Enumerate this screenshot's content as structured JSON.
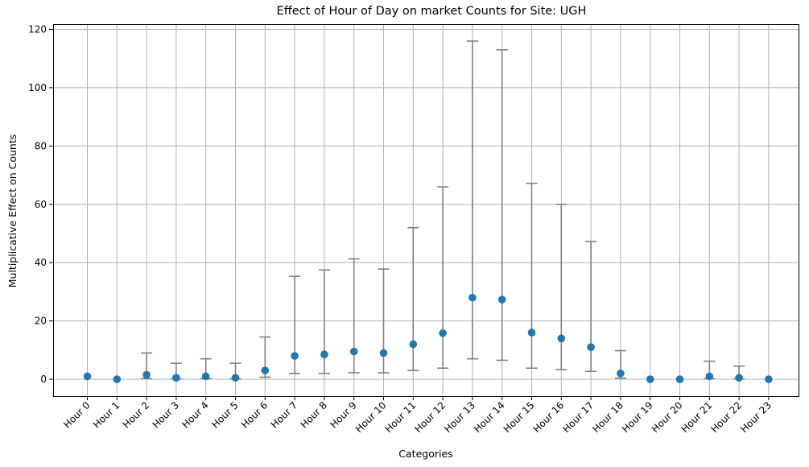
{
  "chart_data": {
    "type": "scatter",
    "title": "Effect of Hour of Day on market Counts for Site: UGH",
    "xlabel": "Categories",
    "ylabel": "Multiplicative Effect on Counts",
    "categories": [
      "Hour 0",
      "Hour 1",
      "Hour 2",
      "Hour 3",
      "Hour 4",
      "Hour 5",
      "Hour 6",
      "Hour 7",
      "Hour 8",
      "Hour 9",
      "Hour 10",
      "Hour 11",
      "Hour 12",
      "Hour 13",
      "Hour 14",
      "Hour 15",
      "Hour 16",
      "Hour 17",
      "Hour 18",
      "Hour 19",
      "Hour 20",
      "Hour 21",
      "Hour 22",
      "Hour 23"
    ],
    "values": [
      1.0,
      0.0,
      1.5,
      0.5,
      1.0,
      0.5,
      3.0,
      8.0,
      8.5,
      9.5,
      9.0,
      12.0,
      15.8,
      28.0,
      27.3,
      16.0,
      14.0,
      11.0,
      2.0,
      0.0,
      0.0,
      1.0,
      0.5,
      0.0
    ],
    "lower": [
      1.0,
      0.0,
      0.2,
      0.1,
      0.2,
      0.1,
      0.7,
      2.0,
      2.0,
      2.2,
      2.2,
      3.0,
      3.8,
      7.0,
      6.5,
      3.8,
      3.3,
      2.7,
      0.4,
      0.0,
      0.0,
      0.2,
      0.1,
      0.0
    ],
    "upper": [
      1.0,
      0.0,
      9.0,
      5.5,
      7.0,
      5.5,
      14.5,
      35.3,
      37.5,
      41.3,
      37.8,
      52.0,
      66.0,
      116.0,
      113.0,
      67.2,
      60.0,
      47.3,
      9.8,
      0.0,
      0.0,
      6.2,
      4.5,
      0.0
    ],
    "yticks": [
      0,
      20,
      40,
      60,
      80,
      100,
      120
    ],
    "ylim": [
      -5.8,
      121.8
    ],
    "grid": true,
    "colors": {
      "point": "#1f77b4",
      "errorbar": "#808080",
      "grid": "#b0b0b0"
    }
  }
}
